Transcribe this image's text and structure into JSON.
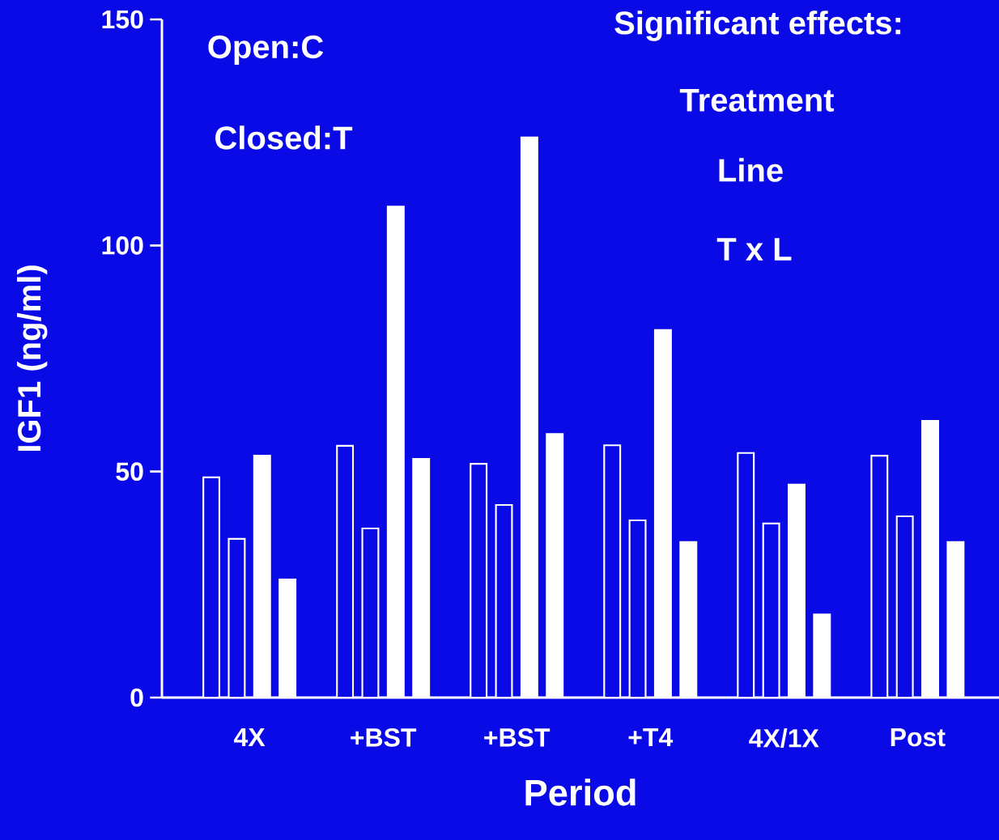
{
  "chart_data": {
    "type": "bar",
    "xlabel": "Period",
    "ylabel": "IGF1 (ng/ml)",
    "categories": [
      "4X",
      "+BST",
      "+BST",
      "+T4",
      "4X/1X",
      "Post"
    ],
    "series": [
      {
        "color": "#0a0ae6",
        "values": [
          48.7,
          55.7,
          51.7,
          55.8,
          54.1,
          53.5
        ]
      },
      {
        "color": "#0a0ae6",
        "values": [
          35.1,
          37.4,
          42.6,
          39.2,
          38.5,
          40.1
        ]
      },
      {
        "color": "#ffffff",
        "values": [
          53.5,
          108.6,
          123.9,
          81.3,
          47.1,
          61.2
        ]
      },
      {
        "color": "#ffffff",
        "values": [
          26.1,
          52.8,
          58.3,
          34.4,
          18.4,
          34.4
        ]
      }
    ],
    "ylim": [
      0,
      150
    ],
    "yticks": [
      0,
      50,
      100,
      150
    ],
    "annotations": [
      "Open:C",
      "Closed:T",
      "Significant effects:",
      "Treatment",
      "Line",
      "T x L"
    ]
  }
}
